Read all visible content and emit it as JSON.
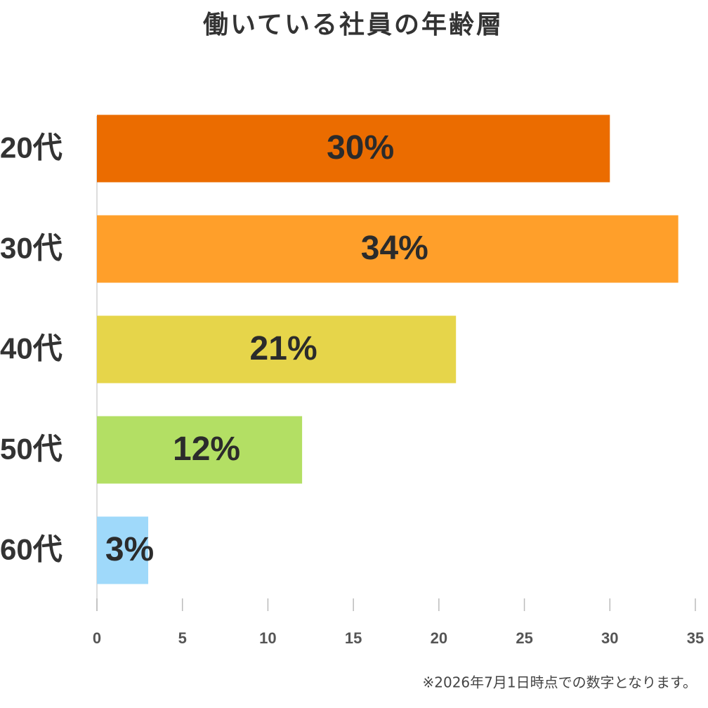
{
  "chart_data": {
    "type": "bar",
    "orientation": "horizontal",
    "title": "働いている社員の年齢層",
    "categories": [
      "20代",
      "30代",
      "40代",
      "50代",
      "60代"
    ],
    "values": [
      30,
      34,
      21,
      12,
      3
    ],
    "value_labels": [
      "30%",
      "34%",
      "21%",
      "12%",
      "3%"
    ],
    "colors": [
      "#eb6c00",
      "#ff9f2a",
      "#e6d54a",
      "#b3df64",
      "#9fd9fa"
    ],
    "xlim": [
      0,
      35
    ],
    "xticks": [
      0,
      5,
      10,
      15,
      20,
      25,
      30,
      35
    ],
    "note": "※2026年7月1日時点での数字となります。"
  }
}
